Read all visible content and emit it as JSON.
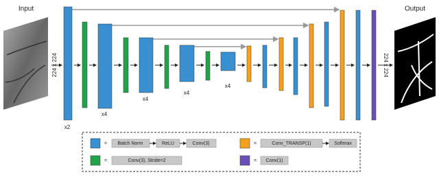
{
  "input_label": "Input",
  "output_label": "Output",
  "input_size": "224 x 224",
  "output_size": "224 x 224",
  "repeats": [
    "x2",
    "x4",
    "x4",
    "x4",
    "x4"
  ],
  "legend": {
    "items": [
      {
        "symbol": "=",
        "steps": [
          "Batch Norm",
          "ReLU",
          "Conv(3)"
        ]
      },
      {
        "symbol": "=",
        "steps": [
          "Conv_TRANSP(1)",
          "Softmax"
        ]
      },
      {
        "symbol": "=",
        "steps": [
          "Conv(3), Stride=2"
        ]
      },
      {
        "symbol": "=",
        "steps": [
          "Conv(1)"
        ]
      }
    ]
  }
}
